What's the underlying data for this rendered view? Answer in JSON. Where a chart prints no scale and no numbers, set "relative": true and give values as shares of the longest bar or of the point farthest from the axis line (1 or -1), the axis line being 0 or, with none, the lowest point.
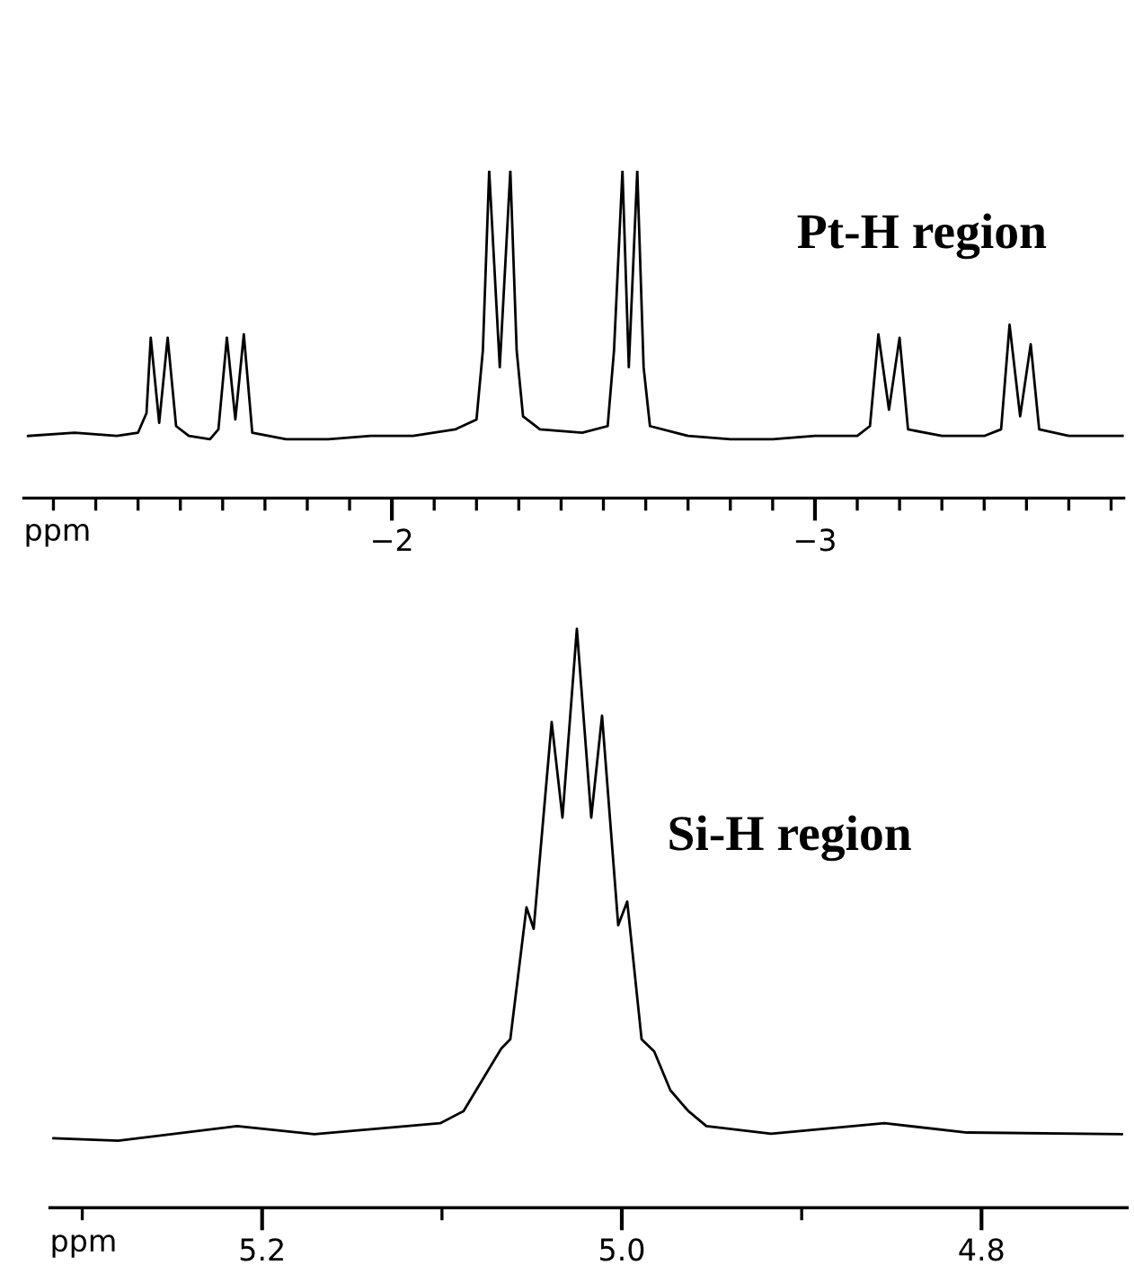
{
  "chart_data": [
    {
      "type": "line",
      "relative": true,
      "xlabel": "ppm",
      "annotations": [
        "Pt-H region"
      ],
      "xlim": [
        -1.13,
        -3.73
      ],
      "grid": false,
      "legend": false,
      "xticks": [
        {
          "value": -1.2,
          "label": null
        },
        {
          "value": -1.3,
          "label": null
        },
        {
          "value": -1.4,
          "label": null
        },
        {
          "value": -1.5,
          "label": null
        },
        {
          "value": -1.6,
          "label": null
        },
        {
          "value": -1.7,
          "label": null
        },
        {
          "value": -1.8,
          "label": null
        },
        {
          "value": -1.9,
          "label": null
        },
        {
          "value": -2,
          "label": "−2"
        },
        {
          "value": -2.1,
          "label": null
        },
        {
          "value": -2.2,
          "label": null
        },
        {
          "value": -2.3,
          "label": null
        },
        {
          "value": -2.4,
          "label": null
        },
        {
          "value": -2.5,
          "label": null
        },
        {
          "value": -2.6,
          "label": null
        },
        {
          "value": -2.7,
          "label": null
        },
        {
          "value": -2.8,
          "label": null
        },
        {
          "value": -2.9,
          "label": null
        },
        {
          "value": -3,
          "label": "−3"
        },
        {
          "value": -3.1,
          "label": null
        },
        {
          "value": -3.2,
          "label": null
        },
        {
          "value": -3.3,
          "label": null
        },
        {
          "value": -3.4,
          "label": null
        },
        {
          "value": -3.5,
          "label": null
        },
        {
          "value": -3.6,
          "label": null
        },
        {
          "value": -3.7,
          "label": null
        }
      ],
      "series": [
        {
          "color": "#000000",
          "x": [
            -1.14,
            -1.25,
            -1.35,
            -1.4,
            -1.42,
            -1.43,
            -1.45,
            -1.47,
            -1.49,
            -1.52,
            -1.57,
            -1.59,
            -1.61,
            -1.63,
            -1.65,
            -1.67,
            -1.75,
            -1.85,
            -1.95,
            -2.05,
            -2.15,
            -2.2,
            -2.215,
            -2.23,
            -2.255,
            -2.28,
            -2.295,
            -2.31,
            -2.35,
            -2.45,
            -2.51,
            -2.525,
            -2.545,
            -2.56,
            -2.58,
            -2.595,
            -2.61,
            -2.7,
            -2.8,
            -2.9,
            -3.0,
            -3.1,
            -3.13,
            -3.15,
            -3.175,
            -3.2,
            -3.22,
            -3.3,
            -3.4,
            -3.44,
            -3.46,
            -3.485,
            -3.51,
            -3.53,
            -3.6,
            -3.7,
            -3.73
          ],
          "values": [
            0.19,
            0.2,
            0.19,
            0.2,
            0.26,
            0.49,
            0.23,
            0.49,
            0.22,
            0.19,
            0.18,
            0.21,
            0.49,
            0.24,
            0.5,
            0.2,
            0.18,
            0.18,
            0.19,
            0.19,
            0.21,
            0.24,
            0.45,
            1.0,
            0.4,
            1.0,
            0.45,
            0.25,
            0.21,
            0.2,
            0.22,
            0.45,
            1.0,
            0.4,
            1.0,
            0.4,
            0.22,
            0.19,
            0.18,
            0.18,
            0.19,
            0.19,
            0.22,
            0.5,
            0.27,
            0.49,
            0.21,
            0.19,
            0.19,
            0.21,
            0.53,
            0.25,
            0.47,
            0.21,
            0.19,
            0.19,
            0.19
          ]
        }
      ]
    },
    {
      "type": "line",
      "relative": true,
      "xlabel": "ppm",
      "annotations": [
        "Si-H region"
      ],
      "xlim": [
        5.318,
        4.719
      ],
      "grid": false,
      "legend": false,
      "xticks": [
        {
          "value": 5.3,
          "label": null
        },
        5.2,
        {
          "value": 5.1,
          "label": null
        },
        {
          "value": 5.0,
          "label": "5.0"
        },
        {
          "value": 4.9,
          "label": null
        },
        4.8
      ],
      "series": [
        {
          "color": "#000000",
          "x": [
            5.316,
            5.28,
            5.214,
            5.171,
            5.101,
            5.088,
            5.075,
            5.067,
            5.062,
            5.053,
            5.049,
            5.039,
            5.033,
            5.025,
            5.017,
            5.011,
            5.002,
            4.997,
            4.989,
            4.982,
            4.973,
            4.963,
            4.953,
            4.917,
            4.854,
            4.808,
            4.722
          ],
          "values": [
            0.12,
            0.116,
            0.141,
            0.127,
            0.146,
            0.167,
            0.234,
            0.275,
            0.291,
            0.519,
            0.482,
            0.839,
            0.674,
            1.0,
            0.674,
            0.85,
            0.488,
            0.529,
            0.291,
            0.27,
            0.203,
            0.167,
            0.141,
            0.128,
            0.146,
            0.13,
            0.127
          ]
        }
      ]
    }
  ]
}
